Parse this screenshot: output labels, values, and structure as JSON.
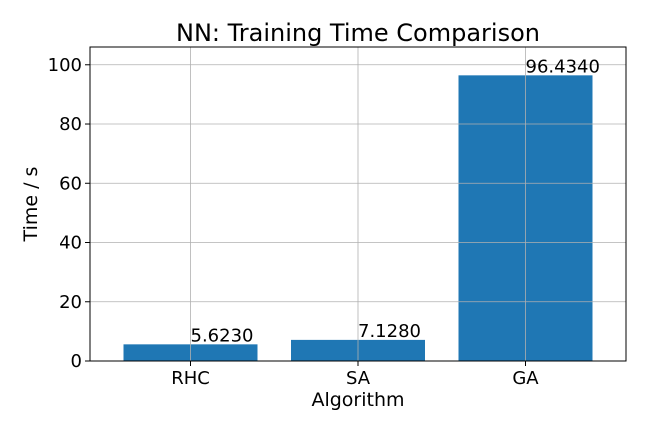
{
  "chart_data": {
    "type": "bar",
    "title": "NN: Training Time Comparison",
    "xlabel": "Algorithm",
    "ylabel": "Time / s",
    "categories": [
      "RHC",
      "SA",
      "GA"
    ],
    "values": [
      5.623,
      7.128,
      96.434
    ],
    "value_labels": [
      "5.6230",
      "7.1280",
      "96.4340"
    ],
    "ylim": [
      0,
      106
    ],
    "yticks": [
      0,
      20,
      40,
      60,
      80,
      100
    ],
    "grid": true,
    "bar_color": "#1f77b4"
  }
}
